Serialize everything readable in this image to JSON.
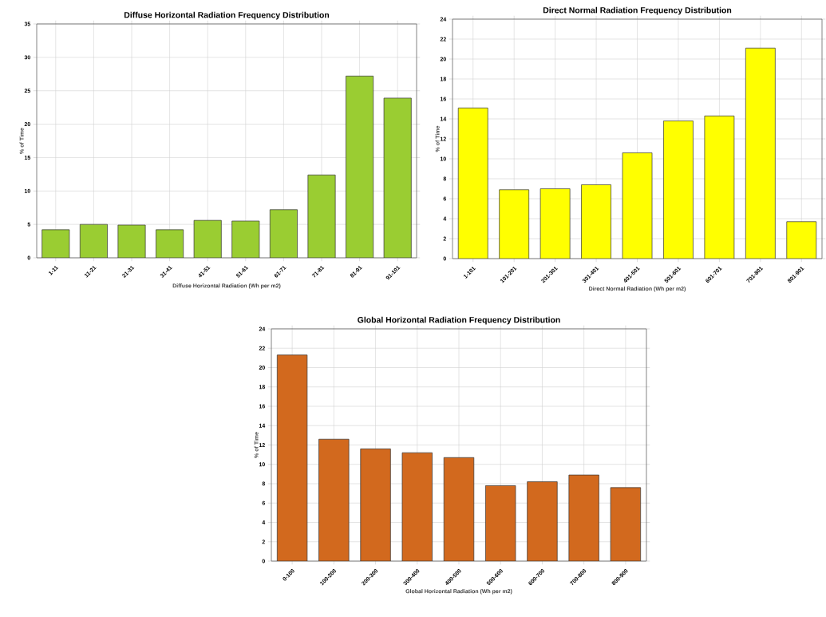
{
  "chart_data": [
    {
      "type": "bar",
      "title": "Diffuse Horizontal Radiation Frequency Distribution",
      "xlabel": "Diffuse Horizontal Radiation (Wh per m2)",
      "ylabel": "% of Time",
      "categories": [
        "1-11",
        "11-21",
        "21-31",
        "31-41",
        "41-51",
        "51-61",
        "61-71",
        "71-81",
        "81-91",
        "91-101"
      ],
      "values": [
        4.2,
        5.0,
        4.9,
        4.2,
        5.6,
        5.5,
        7.2,
        12.4,
        27.2,
        23.9
      ],
      "color": "#9acd32",
      "ylim": [
        0,
        35
      ],
      "yticks": [
        0,
        5,
        10,
        15,
        20,
        25,
        30,
        35
      ],
      "grid": true
    },
    {
      "type": "bar",
      "title": "Direct Normal Radiation Frequency Distribution",
      "xlabel": "Direct Normal Radiation (Wh per m2)",
      "ylabel": "% of Time",
      "categories": [
        "1-101",
        "101-201",
        "201-301",
        "301-401",
        "401-501",
        "501-601",
        "601-701",
        "701-801",
        "801-901"
      ],
      "values": [
        15.1,
        6.9,
        7.0,
        7.4,
        10.6,
        13.8,
        14.3,
        21.1,
        3.7
      ],
      "color": "#ffff00",
      "ylim": [
        0,
        24
      ],
      "yticks": [
        0,
        2,
        4,
        6,
        8,
        10,
        12,
        14,
        16,
        18,
        20,
        22,
        24
      ],
      "grid": true
    },
    {
      "type": "bar",
      "title": "Global Horizontal Radiation Frequency Distribution",
      "xlabel": "Global Horizontal Radiation (Wh per m2)",
      "ylabel": "% of Time",
      "categories": [
        "0-100",
        "100-200",
        "200-300",
        "300-400",
        "400-500",
        "500-600",
        "600-700",
        "700-800",
        "800-900"
      ],
      "values": [
        21.3,
        12.6,
        11.6,
        11.2,
        10.7,
        7.8,
        8.2,
        8.9,
        7.6
      ],
      "color": "#d2691e",
      "ylim": [
        0,
        24
      ],
      "yticks": [
        0,
        2,
        4,
        6,
        8,
        10,
        12,
        14,
        16,
        18,
        20,
        22,
        24
      ],
      "grid": true
    }
  ]
}
